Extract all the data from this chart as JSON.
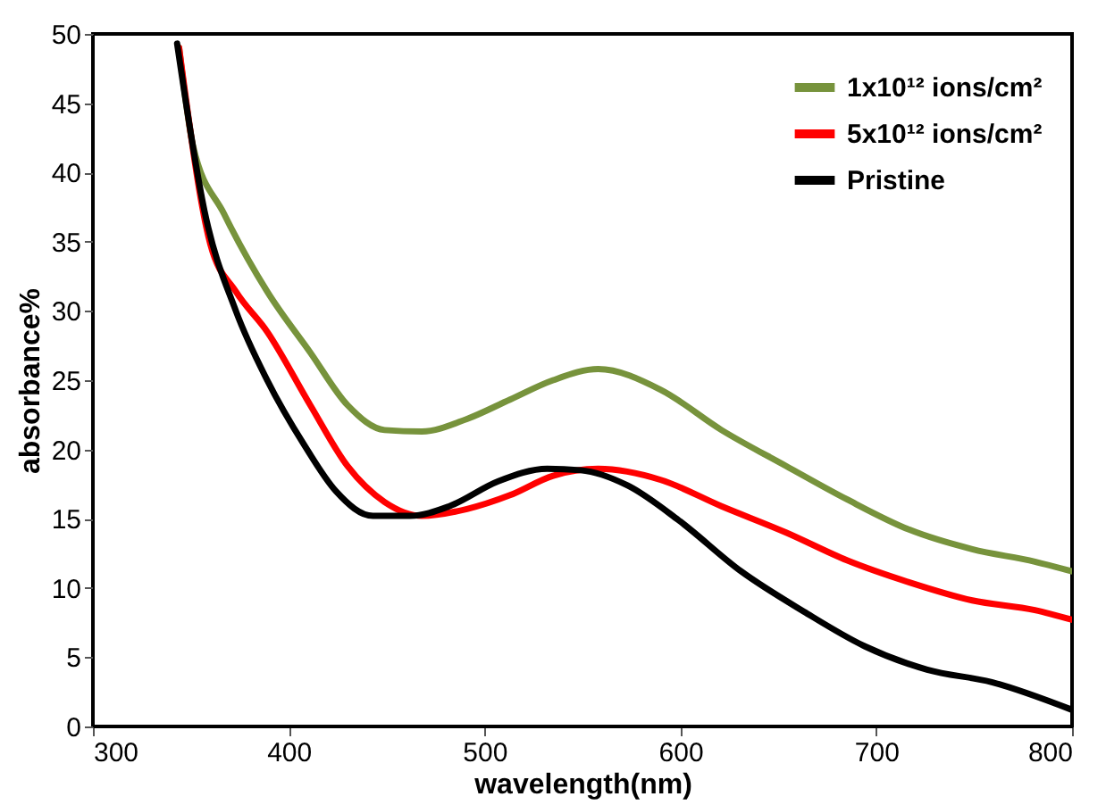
{
  "chart_data": {
    "type": "line",
    "xlabel": "wavelength(nm)",
    "ylabel": "absorbance%",
    "xlim": [
      300,
      800
    ],
    "xticks": [
      300,
      400,
      500,
      600,
      700,
      800
    ],
    "ylim": [
      0,
      50
    ],
    "yticks": [
      0,
      5,
      10,
      15,
      20,
      25,
      30,
      35,
      40,
      45,
      50
    ],
    "grid": false,
    "legend": "top right",
    "marker": "none",
    "line_style": "solid",
    "series": [
      {
        "name": "1x10¹² ions/cm²",
        "color": "#77933c",
        "x": [
          344,
          351,
          367,
          389,
          411,
          430,
          449,
          468,
          491,
          513,
          535,
          558,
          590,
          621,
          654,
          685,
          717,
          749,
          781,
          800
        ],
        "values": [
          49,
          42,
          37,
          31.4,
          27,
          23.2,
          21.4,
          21.3,
          22.2,
          23.6,
          25,
          25.8,
          24.3,
          21.4,
          18.8,
          16.4,
          14.2,
          12.8,
          11.9,
          11.2
        ]
      },
      {
        "name": "5x10¹² ions/cm²",
        "color": "#ff0000",
        "x": [
          344,
          360,
          373,
          389,
          411,
          430,
          449,
          468,
          491,
          513,
          535,
          558,
          590,
          621,
          654,
          685,
          717,
          749,
          781,
          800
        ],
        "values": [
          49,
          34.8,
          31.4,
          28.5,
          23.2,
          18.8,
          16.2,
          15.2,
          15.7,
          16.7,
          18.1,
          18.6,
          17.8,
          15.9,
          14,
          12,
          10.4,
          9.1,
          8.4,
          7.7
        ]
      },
      {
        "name": "Pristine",
        "color": "#000000",
        "x": [
          343,
          357,
          373,
          389,
          408,
          424,
          443,
          462,
          482,
          507,
          532,
          549,
          573,
          599,
          631,
          663,
          694,
          726,
          759,
          800
        ],
        "values": [
          49.3,
          37.2,
          30,
          25,
          20.3,
          17,
          15.2,
          15.2,
          15.9,
          17.7,
          18.6,
          18.5,
          17.4,
          14.9,
          11.2,
          8.3,
          5.8,
          4.1,
          3.2,
          1.2
        ]
      }
    ]
  }
}
